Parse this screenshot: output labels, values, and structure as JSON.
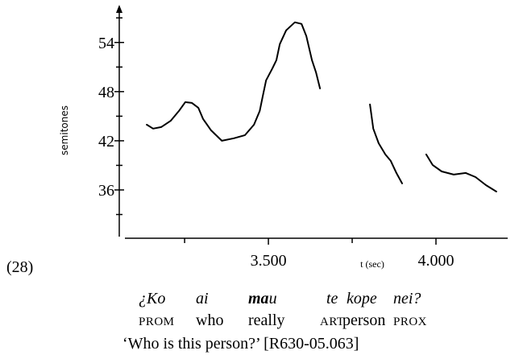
{
  "chart_data": {
    "type": "line",
    "example_number": "(28)",
    "ylabel": "semitones",
    "xlabel": "t (sec)",
    "xlim": [
      3.055,
      4.214
    ],
    "ylim": [
      30.3,
      58.2
    ],
    "xticks": [
      {
        "value": 3.5,
        "label": "3.500"
      },
      {
        "value": 4.0,
        "label": "4.000"
      }
    ],
    "xminor_ticks": [
      3.25,
      3.75
    ],
    "yticks": [
      36,
      42,
      48,
      54
    ],
    "yminor_ticks": [
      33,
      39,
      45,
      51,
      57
    ],
    "series": [
      {
        "color": "#000000",
        "x": [
          3.137,
          3.156,
          3.18,
          3.209,
          3.233,
          3.252,
          3.272,
          3.291,
          3.305,
          3.329,
          3.361,
          3.397,
          3.43,
          3.457,
          3.474,
          3.483,
          3.493,
          3.512,
          3.524,
          3.534,
          3.553,
          3.579,
          3.599,
          3.613,
          3.63,
          3.642,
          3.654,
          null,
          3.803,
          3.813,
          3.829,
          3.849,
          3.865,
          3.882,
          3.899,
          null,
          3.971,
          3.99,
          4.017,
          4.053,
          4.089,
          4.118,
          4.149,
          4.18
        ],
        "values": [
          43.97,
          43.48,
          43.67,
          44.46,
          45.64,
          46.72,
          46.62,
          46.03,
          44.66,
          43.28,
          42.0,
          42.3,
          42.69,
          43.97,
          45.64,
          47.41,
          49.38,
          50.85,
          51.84,
          53.8,
          55.48,
          56.46,
          56.26,
          54.79,
          51.84,
          50.36,
          48.39,
          null,
          46.43,
          43.48,
          41.7,
          40.33,
          39.54,
          38.07,
          36.79,
          null,
          40.33,
          39.05,
          38.26,
          37.87,
          38.07,
          37.57,
          36.59,
          35.8
        ]
      }
    ],
    "gloss": {
      "words": [
        "¿Ko",
        "ai",
        {
          "bold": "ma",
          "rest": "u"
        },
        "te",
        "kope",
        "nei?"
      ],
      "glosses": [
        "PROM",
        "who",
        "really",
        "ART",
        "person",
        "PROX"
      ],
      "translation": "‘Who is this person?’ [R630-05.063]"
    }
  }
}
